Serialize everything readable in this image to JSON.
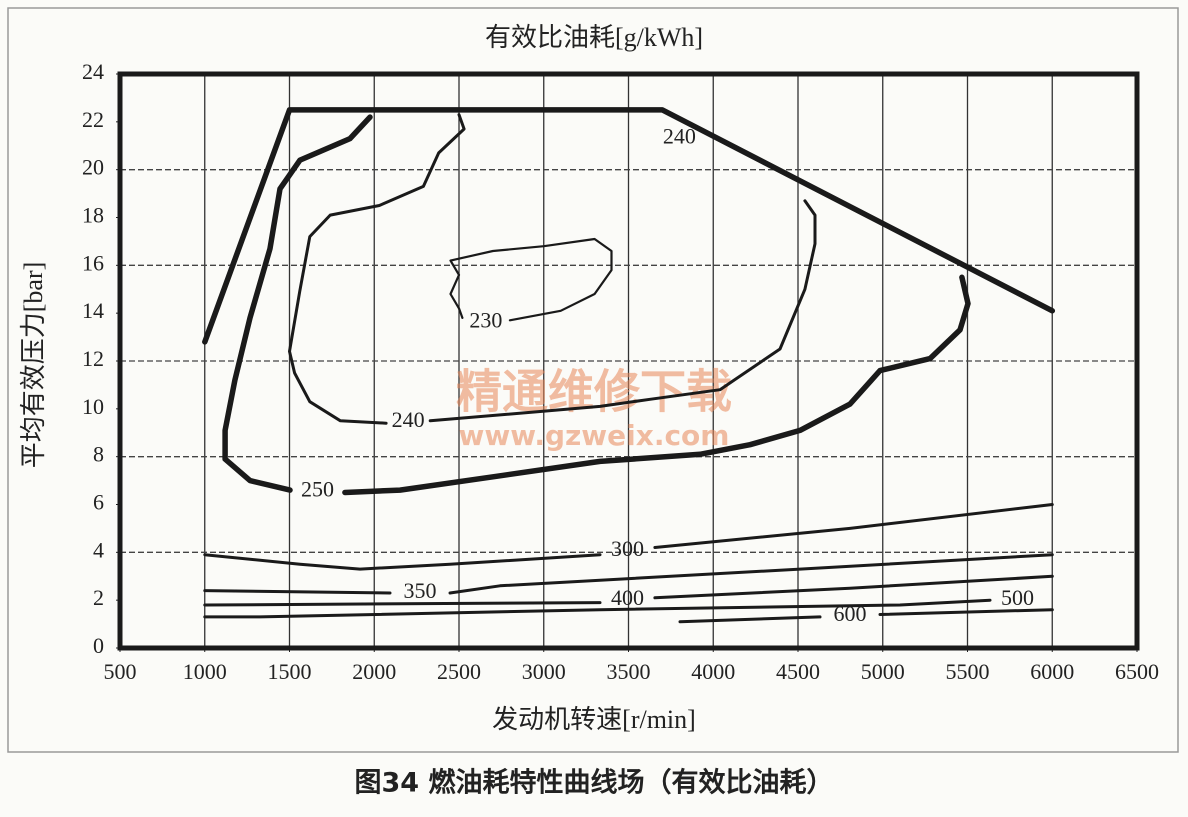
{
  "chart_data": {
    "type": "contour",
    "title": "有效比油耗[g/kWh]",
    "x_label": "发动机转速[r/min]",
    "y_label": "平均有效压力[bar]",
    "caption": "图34 燃油耗特性曲线场（有效比油耗）",
    "watermark": [
      "精通维修下载",
      "www.gzweix.com"
    ],
    "xlim": [
      500,
      6500
    ],
    "xticks": [
      500,
      1000,
      1500,
      2000,
      2500,
      3000,
      3500,
      4000,
      4500,
      5000,
      5500,
      6000,
      6500
    ],
    "ylim": [
      0,
      24
    ],
    "yticks": [
      0,
      2,
      4,
      6,
      8,
      10,
      12,
      14,
      16,
      18,
      20,
      22,
      24
    ],
    "xgrid": [
      1000,
      1500,
      2000,
      2500,
      3000,
      3500,
      4000,
      4500,
      5000,
      5500,
      6000
    ],
    "ygrid": [
      4,
      8,
      12,
      16,
      20
    ],
    "color": "#1a1a1a",
    "series": [
      {
        "weight": "heavy",
        "x": [
          1000,
          1500,
          3700,
          6000
        ],
        "values": [
          12.8,
          22.5,
          22.5,
          14.1
        ]
      },
      {
        "name": "230",
        "weight": "light",
        "x": [
          2800,
          3100,
          3300,
          3400,
          3400,
          3300,
          3000,
          2700,
          2450,
          2500,
          2450,
          2500,
          2520
        ],
        "values": [
          13.7,
          14.1,
          14.8,
          15.8,
          16.6,
          17.1,
          16.8,
          16.6,
          16.2,
          15.6,
          14.8,
          14.2,
          13.8
        ]
      },
      {
        "name": "240",
        "weight": "medium",
        "x": [
          2500,
          2530,
          2380,
          2290,
          2030,
          1740,
          1620,
          1560,
          1500,
          1530,
          1620,
          1800,
          2070,
          null,
          2330,
          3332,
          3627,
          4040,
          4394,
          4541,
          4600,
          4600,
          4541
        ],
        "values": [
          22.3,
          21.7,
          20.7,
          19.3,
          18.5,
          18.1,
          17.2,
          14.9,
          12.4,
          11.5,
          10.3,
          9.5,
          9.4,
          null,
          9.5,
          10.1,
          10.4,
          10.8,
          12.5,
          15.0,
          16.9,
          18.1,
          18.7
        ]
      },
      {
        "name": "250",
        "weight": "heavy",
        "x": [
          1975,
          1857,
          1562,
          1444,
          1385,
          1267,
          1178,
          1120,
          1120,
          1267,
          1503,
          null,
          1827,
          2152,
          2742,
          3332,
          3922,
          4217,
          4512,
          4807,
          4984,
          5279,
          5456,
          5503,
          5467
        ],
        "values": [
          22.2,
          21.3,
          20.4,
          19.2,
          16.7,
          13.8,
          11.2,
          9.1,
          7.9,
          7.0,
          6.6,
          null,
          6.5,
          6.6,
          7.2,
          7.8,
          8.1,
          8.5,
          9.1,
          10.2,
          11.6,
          12.1,
          13.3,
          14.4,
          15.5
        ]
      },
      {
        "name": "300",
        "weight": "medium",
        "x": [
          1000,
          1562,
          1916,
          2447,
          3332,
          null,
          3656,
          4807,
          6000
        ],
        "values": [
          3.9,
          3.5,
          3.3,
          3.5,
          3.9,
          null,
          4.2,
          5.0,
          6.0
        ]
      },
      {
        "name": "350",
        "weight": "medium",
        "x": [
          1000,
          2093,
          null,
          2447,
          2742,
          4512,
          6000
        ],
        "values": [
          2.4,
          2.3,
          null,
          2.3,
          2.6,
          3.3,
          3.9
        ]
      },
      {
        "name": "400",
        "weight": "medium",
        "x": [
          1000,
          3332,
          null,
          3656,
          4807,
          6000
        ],
        "values": [
          1.8,
          1.9,
          null,
          2.1,
          2.5,
          3.0
        ]
      },
      {
        "name": "500",
        "weight": "medium",
        "x": [
          1000,
          1326,
          3332,
          5102,
          5633,
          null,
          5957
        ],
        "values": [
          1.3,
          1.3,
          1.6,
          1.8,
          2.0,
          null,
          2.0
        ]
      },
      {
        "name": "600",
        "weight": "medium",
        "x": [
          3804,
          4630,
          null,
          4984,
          6000
        ],
        "values": [
          1.1,
          1.3,
          null,
          1.4,
          1.6
        ]
      }
    ],
    "annotations": [
      {
        "text": "240",
        "x": 3800,
        "y": 21.3
      }
    ]
  }
}
